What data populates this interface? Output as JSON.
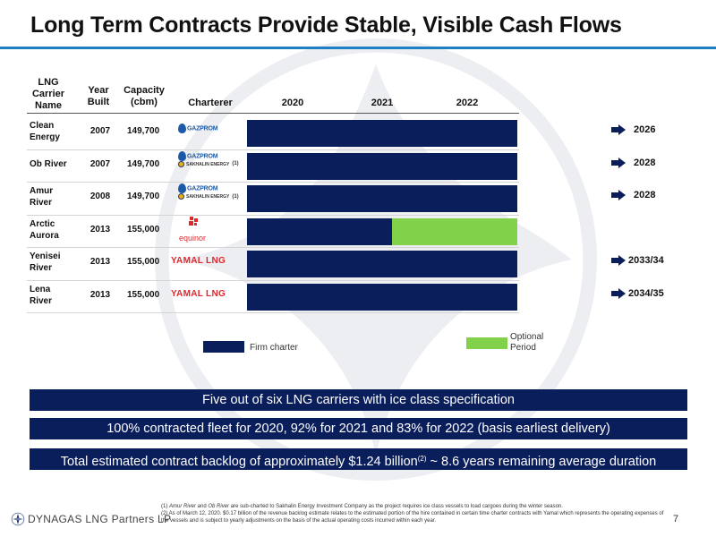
{
  "title": "Long Term Contracts Provide Stable, Visible Cash Flows",
  "table": {
    "headers": {
      "name": [
        "LNG",
        "Carrier",
        "Name"
      ],
      "year": [
        "Year",
        "Built"
      ],
      "capacity": [
        "Capacity",
        "(cbm)"
      ],
      "charterer": "Charterer",
      "years": [
        "2020",
        "2021",
        "2022"
      ]
    },
    "rows": [
      {
        "name": [
          "Clean",
          "Energy"
        ],
        "year": "2007",
        "capacity": "149,700",
        "charterer": "gazprom",
        "logo_text": "GAZPROM",
        "secondary": "",
        "footnote_mark": "",
        "optional_from": null,
        "expiry": "2026"
      },
      {
        "name": [
          "Ob River"
        ],
        "year": "2007",
        "capacity": "149,700",
        "charterer": "gazprom",
        "logo_text": "GAZPROM",
        "secondary": "SAKHALIN ENERGY",
        "footnote_mark": "(1)",
        "optional_from": null,
        "expiry": "2028"
      },
      {
        "name": [
          "Amur",
          "River"
        ],
        "year": "2008",
        "capacity": "149,700",
        "charterer": "gazprom",
        "logo_text": "GAZPROM",
        "secondary": "SAKHALIN ENERGY",
        "footnote_mark": "(1)",
        "optional_from": null,
        "expiry": "2028"
      },
      {
        "name": [
          "Arctic",
          "Aurora"
        ],
        "year": "2013",
        "capacity": "155,000",
        "charterer": "equinor",
        "logo_text": "equinor",
        "secondary": "",
        "footnote_mark": "",
        "optional_from": 0.535,
        "expiry": ""
      },
      {
        "name": [
          "Yenisei",
          "River"
        ],
        "year": "2013",
        "capacity": "155,000",
        "charterer": "yamal",
        "logo_text": "YAMAL LNG",
        "secondary": "",
        "footnote_mark": "",
        "optional_from": null,
        "expiry": "2033/34"
      },
      {
        "name": [
          "Lena",
          "River"
        ],
        "year": "2013",
        "capacity": "155,000",
        "charterer": "yamal",
        "logo_text": "YAMAL LNG",
        "secondary": "",
        "footnote_mark": "",
        "optional_from": null,
        "expiry": "2034/35"
      }
    ]
  },
  "legend": {
    "firm": "Firm charter",
    "optional": [
      "Optional",
      "Period"
    ]
  },
  "banners": [
    {
      "text": "Five out of six LNG carriers with ice class specification"
    },
    {
      "text": "100% contracted fleet for 2020, 92% for 2021 and 83% for 2022 (basis earliest delivery)"
    },
    {
      "text_before": "Total estimated contract backlog of approximately $1.24 billion",
      "sup": "(2)",
      "text_after": " ~ 8.6 years remaining average duration"
    }
  ],
  "footnotes": {
    "f1_italic": "Amur River",
    "f1_and": " and ",
    "f1_italic2": "Ob River",
    "f1_prefix": "(1) ",
    "f1_rest": " are sub-charted to Sakhalin Energy Investment Company as the project requires ice class vessels to load cargoes during the winter season.",
    "f2": "(2) As of March 12, 2020. $0.17 billion of the revenue backlog estimate relates to the estimated portion of the hire contained in certain time charter contracts with Yamal which represents the operating expenses of the vessels and is subject to yearly adjustments on the basis of the actual operating costs incurred within each year."
  },
  "brand": "DYNAGAS LNG Partners LP",
  "page_number": "7",
  "colors": {
    "firm": "#0a1e5c",
    "optional": "#82d14a",
    "accent": "#1f7fc3"
  }
}
